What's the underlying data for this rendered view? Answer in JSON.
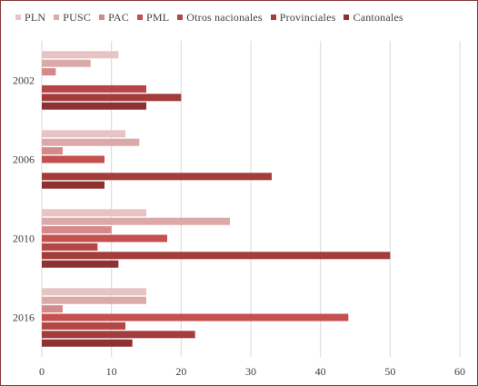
{
  "chart_data": {
    "type": "bar",
    "orientation": "horizontal",
    "title": "",
    "xlabel": "",
    "ylabel": "",
    "categories": [
      "2002",
      "2006",
      "2010",
      "2016"
    ],
    "xlim": [
      0,
      60
    ],
    "xticks": [
      0,
      10,
      20,
      30,
      40,
      50,
      60
    ],
    "grid": "vertical",
    "legend_position": "top",
    "series": [
      {
        "name": "PLN",
        "color": "#e7c3c3",
        "values": [
          11,
          12,
          15,
          15
        ]
      },
      {
        "name": "PUSC",
        "color": "#dca9a9",
        "values": [
          7,
          14,
          27,
          15
        ]
      },
      {
        "name": "PAC",
        "color": "#d48a8a",
        "values": [
          2,
          3,
          10,
          3
        ]
      },
      {
        "name": "PML",
        "color": "#c55050",
        "values": [
          null,
          9,
          18,
          44
        ]
      },
      {
        "name": "Otros nacionales",
        "color": "#b54646",
        "values": [
          15,
          null,
          8,
          12
        ]
      },
      {
        "name": "Provinciales",
        "color": "#a43c3c",
        "values": [
          20,
          33,
          50,
          22
        ]
      },
      {
        "name": "Cantonales",
        "color": "#8e3131",
        "values": [
          15,
          9,
          11,
          13
        ]
      }
    ]
  }
}
